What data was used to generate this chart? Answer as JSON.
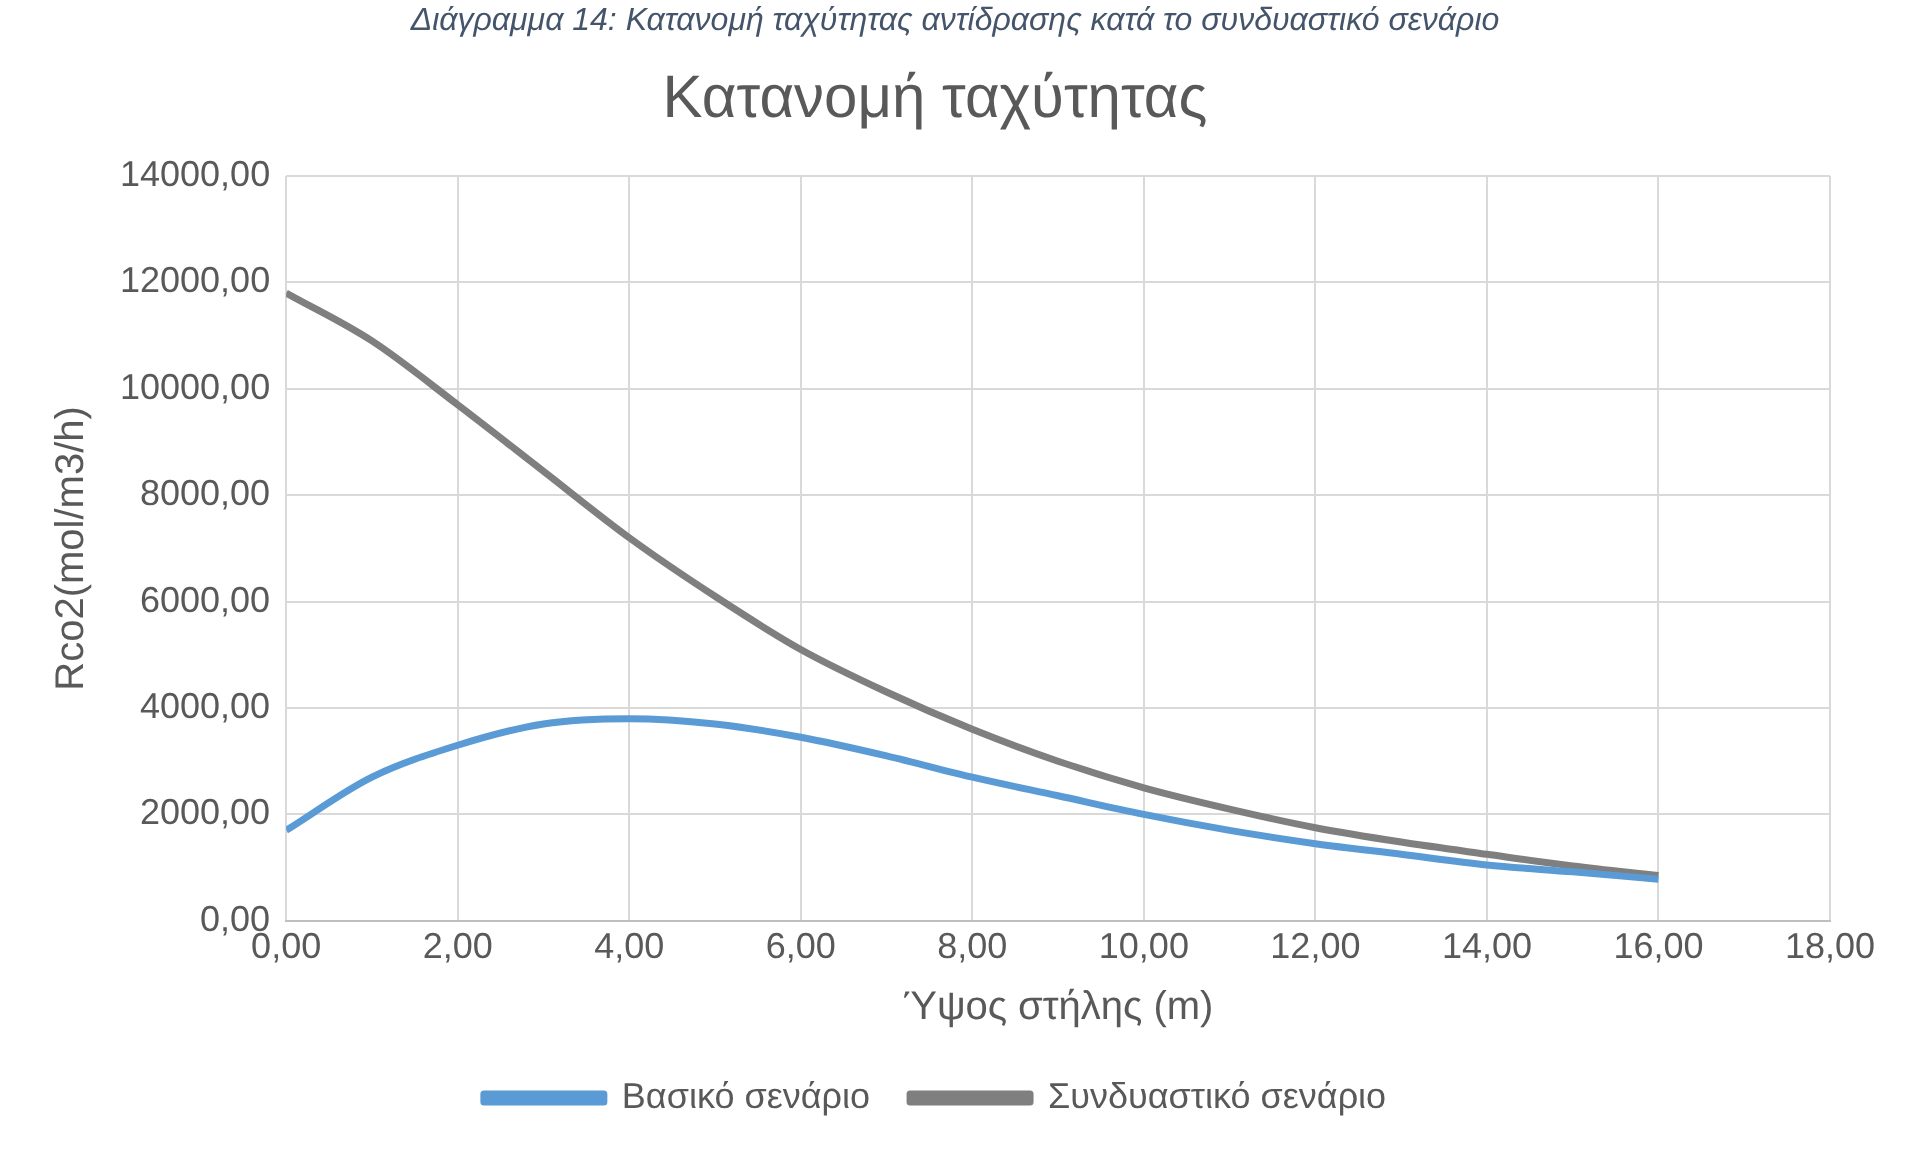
{
  "chart_data": {
    "type": "line",
    "title": "Κατανομή ταχύτητας",
    "xlabel": "Ύψος στήλης (m)",
    "ylabel": "Rco2(mol/m3/h)",
    "annotations": [
      "Διάγραμμα 14: Κατανομή ταχύτητας αντίδρασης κατά το συνδυαστικό σενάριο"
    ],
    "x": [
      0,
      1,
      2,
      3,
      4,
      5,
      6,
      7,
      8,
      9,
      10,
      11,
      12,
      13,
      14,
      15,
      16
    ],
    "series": [
      {
        "name": "Βασικό σενάριο",
        "color": "#5b9bd5",
        "values": [
          1700,
          2700,
          3300,
          3700,
          3800,
          3700,
          3450,
          3100,
          2700,
          2350,
          2000,
          1700,
          1450,
          1250,
          1050,
          920,
          780
        ]
      },
      {
        "name": "Συνδυαστικό σενάριο",
        "color": "#7f7f7f",
        "values": [
          11800,
          10900,
          9700,
          8450,
          7200,
          6100,
          5100,
          4300,
          3600,
          3000,
          2500,
          2100,
          1750,
          1480,
          1250,
          1030,
          850
        ]
      }
    ],
    "xlim": [
      0,
      18
    ],
    "xticks": [
      {
        "value": 0,
        "label": "0,00"
      },
      {
        "value": 2,
        "label": "2,00"
      },
      {
        "value": 4,
        "label": "4,00"
      },
      {
        "value": 6,
        "label": "6,00"
      },
      {
        "value": 8,
        "label": "8,00"
      },
      {
        "value": 10,
        "label": "10,00"
      },
      {
        "value": 12,
        "label": "12,00"
      },
      {
        "value": 14,
        "label": "14,00"
      },
      {
        "value": 16,
        "label": "16,00"
      },
      {
        "value": 18,
        "label": "18,00"
      }
    ],
    "ylim": [
      0,
      14000
    ],
    "yticks": [
      {
        "value": 0,
        "label": "0,00"
      },
      {
        "value": 2000,
        "label": "2000,00"
      },
      {
        "value": 4000,
        "label": "4000,00"
      },
      {
        "value": 6000,
        "label": "6000,00"
      },
      {
        "value": 8000,
        "label": "8000,00"
      },
      {
        "value": 10000,
        "label": "10000,00"
      },
      {
        "value": 12000,
        "label": "12000,00"
      },
      {
        "value": 14000,
        "label": "14000,00"
      }
    ],
    "grid": true,
    "legend": "bottom",
    "marker": "none",
    "line_style": "solid"
  }
}
